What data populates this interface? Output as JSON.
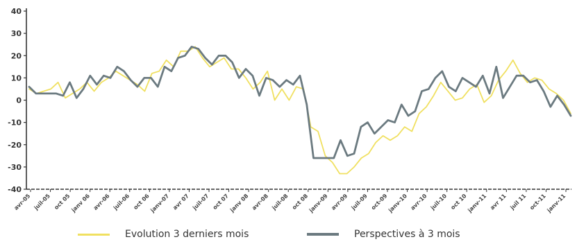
{
  "chart_data": {
    "type": "line",
    "title": "",
    "xlabel": "",
    "ylabel": "",
    "ylim": [
      -40,
      40
    ],
    "yticks": [
      40,
      30,
      20,
      10,
      0,
      -10,
      -20,
      -30,
      -40
    ],
    "x_tick_labels": [
      "avr-05",
      "juil-05",
      "oct 05",
      "janv 06",
      "avr-06",
      "juil-06",
      "oct 06",
      "janv-07",
      "avr 07",
      "juil-07",
      "oct 07",
      "janv 08",
      "avr-08",
      "juil-08",
      "oct 08",
      "janv-09",
      "avr-09",
      "juil-09",
      "oct-09",
      "janv-10",
      "avr-10",
      "juil-10",
      "oct 10",
      "janv-11",
      "avr 11",
      "juil 11",
      "oct-11",
      "janv-11"
    ],
    "series": [
      {
        "name": "Evolution 3 derniers mois",
        "color": "#f0e060",
        "values": [
          5,
          3,
          4,
          5,
          8,
          1,
          3,
          5,
          8,
          4,
          8,
          10,
          13,
          11,
          9,
          7,
          4,
          12,
          13,
          18,
          15,
          22,
          22,
          24,
          19,
          15,
          17,
          19,
          14,
          14,
          10,
          5,
          8,
          13,
          0,
          5,
          0,
          6,
          5,
          -12,
          -14,
          -25,
          -28,
          -33,
          -33,
          -30,
          -26,
          -24,
          -19,
          -16,
          -18,
          -16,
          -12,
          -14,
          -6,
          -3,
          2,
          8,
          4,
          0,
          1,
          5,
          7,
          -1,
          2,
          9,
          13,
          18,
          12,
          8,
          10,
          9,
          5,
          3,
          0,
          -6
        ]
      },
      {
        "name": "Perspectives à 3 mois",
        "color": "#6b7a80",
        "values": [
          6,
          3,
          3,
          3,
          3,
          2,
          8,
          1,
          5,
          11,
          7,
          11,
          10,
          15,
          13,
          9,
          6,
          10,
          10,
          6,
          15,
          13,
          19,
          20,
          24,
          23,
          19,
          16,
          20,
          20,
          17,
          10,
          14,
          11,
          2,
          10,
          9,
          6,
          9,
          7,
          11,
          -2,
          -26,
          -26,
          -26,
          -26,
          -18,
          -25,
          -24,
          -12,
          -10,
          -15,
          -12,
          -9,
          -10,
          -2,
          -7,
          -5,
          4,
          5,
          10,
          13,
          6,
          4,
          10,
          8,
          6,
          11,
          3,
          15,
          1,
          6,
          11,
          11,
          8,
          9,
          4,
          -3,
          2,
          -2,
          -7
        ]
      }
    ]
  },
  "legend": {
    "item1": "Evolution 3 derniers mois",
    "item2": "Perspectives à 3 mois"
  }
}
